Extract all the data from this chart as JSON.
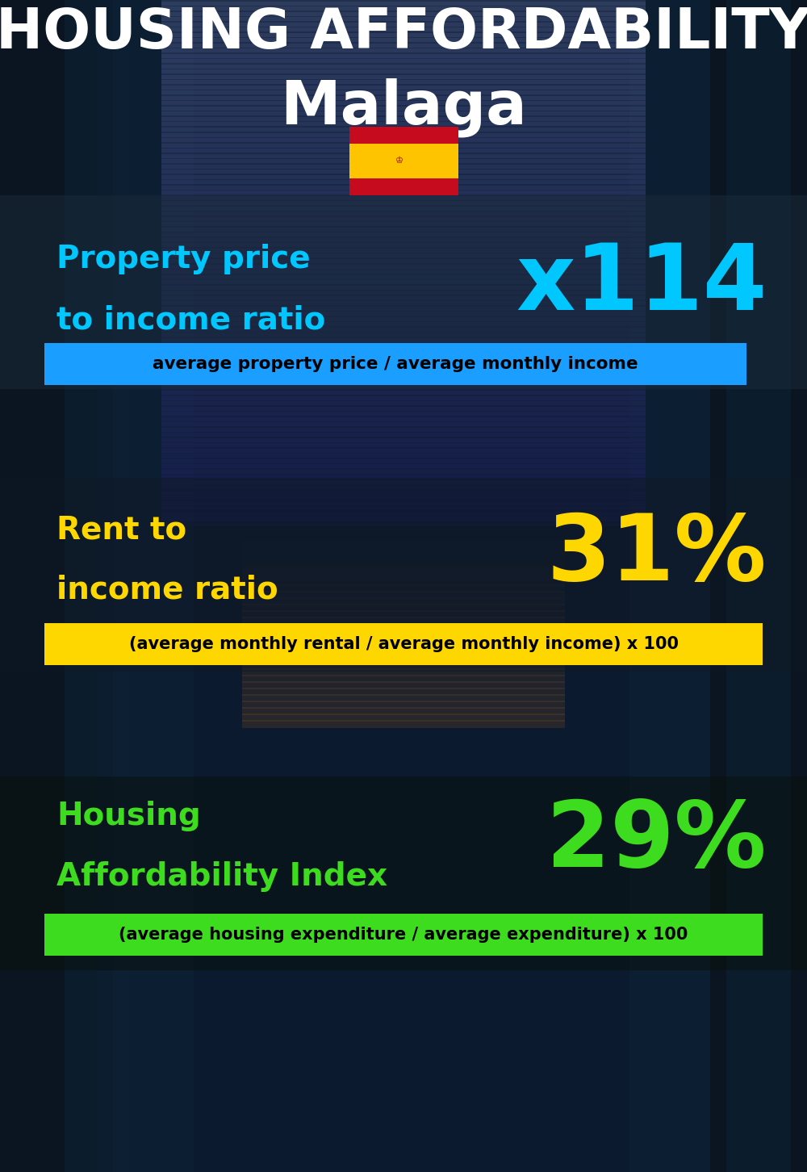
{
  "title_line1": "HOUSING AFFORDABILITY",
  "title_line2": "Malaga",
  "bg_color": "#0b1a2e",
  "title1_color": "#ffffff",
  "title2_color": "#ffffff",
  "section1_label_line1": "Property price",
  "section1_label_line2": "to income ratio",
  "section1_value": "x114",
  "section1_label_color": "#00c8ff",
  "section1_value_color": "#00c8ff",
  "section1_formula": "average property price / average monthly income",
  "section1_formula_bg": "#1a9eff",
  "section1_formula_color": "#000000",
  "section2_label_line1": "Rent to",
  "section2_label_line2": "income ratio",
  "section2_value": "31%",
  "section2_label_color": "#ffd700",
  "section2_value_color": "#ffd700",
  "section2_formula": "(average monthly rental / average monthly income) x 100",
  "section2_formula_bg": "#ffd700",
  "section2_formula_color": "#000000",
  "section3_label_line1": "Housing",
  "section3_label_line2": "Affordability Index",
  "section3_value": "29%",
  "section3_label_color": "#3ddc1e",
  "section3_value_color": "#3ddc1e",
  "section3_formula": "(average housing expenditure / average expenditure) x 100",
  "section3_formula_bg": "#3ddc1e",
  "section3_formula_color": "#000000",
  "flag_red": "#c60b1e",
  "flag_yellow": "#ffc400"
}
